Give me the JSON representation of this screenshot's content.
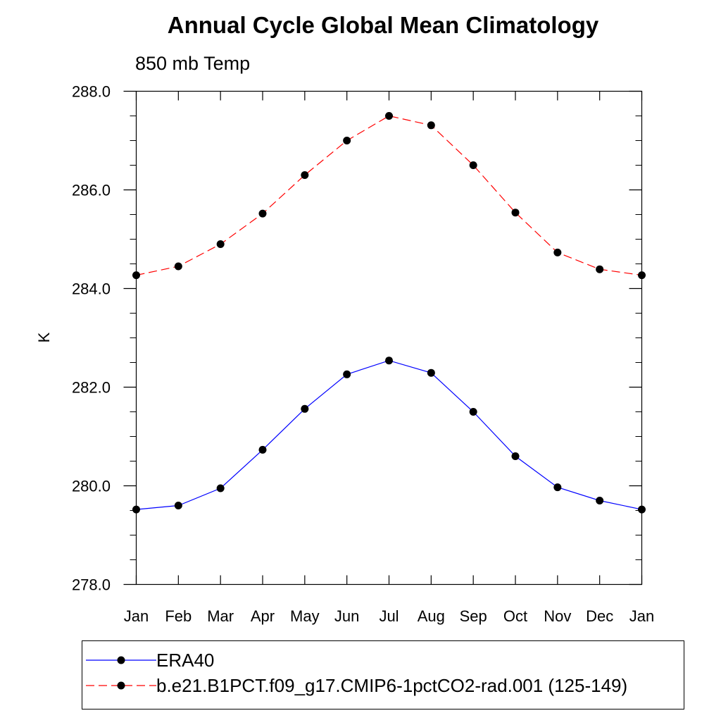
{
  "chart_data": {
    "type": "line",
    "title": "Annual Cycle Global Mean Climatology",
    "subtitle": "850 mb Temp",
    "xlabel": "",
    "ylabel": "K",
    "categories": [
      "Jan",
      "Feb",
      "Mar",
      "Apr",
      "May",
      "Jun",
      "Jul",
      "Aug",
      "Sep",
      "Oct",
      "Nov",
      "Dec",
      "Jan"
    ],
    "ylim": [
      278.0,
      288.0
    ],
    "yticks": [
      "278.0",
      "280.0",
      "282.0",
      "284.0",
      "286.0",
      "288.0"
    ],
    "grid": false,
    "legend_position": "bottom",
    "series": [
      {
        "name": "ERA40",
        "color": "#0000ff",
        "line_style": "solid",
        "marker": "filled-circle",
        "values": [
          279.52,
          279.6,
          279.95,
          280.73,
          281.56,
          282.26,
          282.54,
          282.29,
          281.5,
          280.6,
          279.97,
          279.7,
          279.52
        ]
      },
      {
        "name": "b.e21.B1PCT.f09_g17.CMIP6-1pctCO2-rad.001 (125-149)",
        "color": "#ff0000",
        "line_style": "dashed",
        "marker": "filled-circle",
        "values": [
          284.27,
          284.45,
          284.9,
          285.52,
          286.3,
          287.0,
          287.5,
          287.31,
          286.5,
          285.54,
          284.73,
          284.39,
          284.27
        ]
      }
    ]
  }
}
